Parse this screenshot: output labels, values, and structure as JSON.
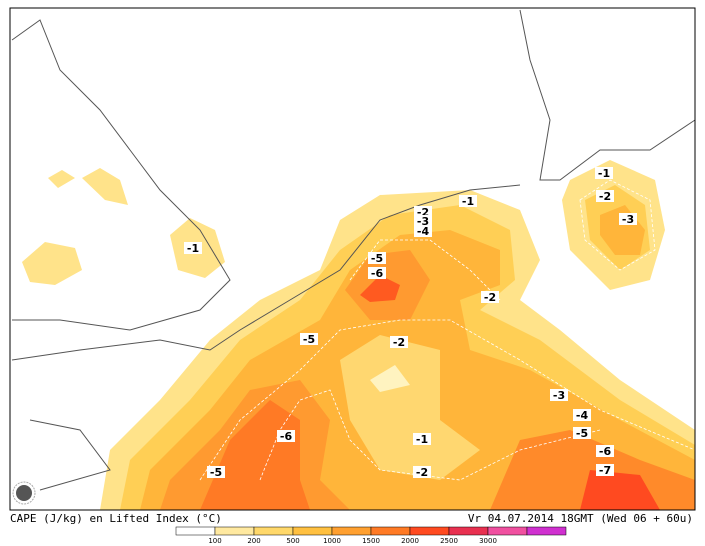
{
  "map": {
    "contour_labels": [
      "-1",
      "-2",
      "-3",
      "-4",
      "-5",
      "-6",
      "-1",
      "-2",
      "-5",
      "-2",
      "-1",
      "-2",
      "-3",
      "-3",
      "-4",
      "-5",
      "-6",
      "-7",
      "-6",
      "-1",
      "-2",
      "-5"
    ],
    "caption": "CAPE (J/kg) en Lifted Index (°C)",
    "valid_time": "Vr 04.07.2014 18GMT (Wed 06 + 60u)",
    "legend": {
      "labels": [
        "100",
        "200",
        "500",
        "1000",
        "1500",
        "2000",
        "2500",
        "3000"
      ]
    }
  }
}
